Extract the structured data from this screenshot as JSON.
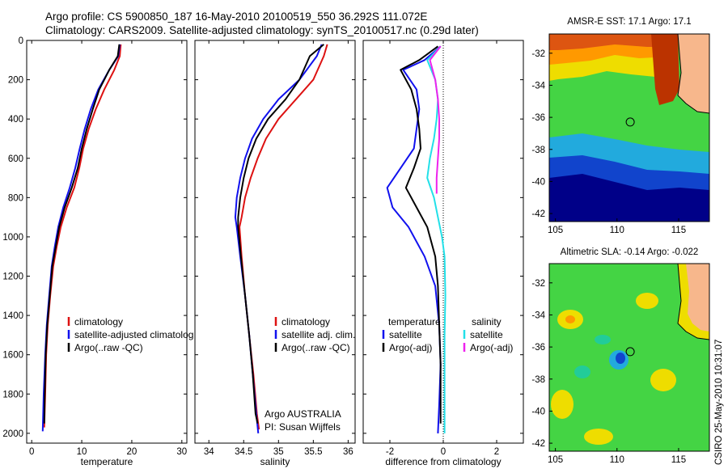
{
  "header": {
    "line1": "Argo profile: CS 5900850_187 16-May-2010 20100519_550 36.292S 111.072E",
    "line2": "Climatology: CARS2009. Satellite-adjusted climatology: synTS_20100517.nc (0.29d later)"
  },
  "footer": {
    "stamp": "CSIRO 25-May-2010 10:31:07"
  },
  "colors": {
    "climatology": "#dd1111",
    "satellite": "#1111ee",
    "argo": "#000000",
    "satellite_diff": "#22e0e8",
    "argo_adj_diff": "#ee22ee",
    "zero_line": "#000000"
  },
  "chart_data": [
    {
      "type": "line",
      "xlabel": "temperature",
      "ylabel": "",
      "xlim": [
        -1,
        31
      ],
      "ylim": [
        2050,
        0
      ],
      "xticks": [
        0,
        10,
        20,
        30
      ],
      "yticks": [
        0,
        200,
        400,
        600,
        800,
        1000,
        1200,
        1400,
        1600,
        1800,
        2000
      ],
      "legend": [
        "climatology",
        "satellite-adjusted climatolog",
        "Argo(..raw -QC)"
      ],
      "series": [
        {
          "name": "climatology",
          "color_key": "climatology",
          "x": [
            17.8,
            17.6,
            16.5,
            14.5,
            12.8,
            11.4,
            10.3,
            9.5,
            8.5,
            7.0,
            5.8,
            5.0,
            4.3,
            3.7,
            3.2,
            2.9,
            2.7,
            2.5
          ],
          "y": [
            20,
            80,
            150,
            250,
            350,
            450,
            550,
            650,
            750,
            850,
            950,
            1050,
            1150,
            1300,
            1450,
            1600,
            1800,
            1970
          ]
        },
        {
          "name": "satellite-adjusted climatolog",
          "color_key": "satellite",
          "x": [
            17.6,
            17.3,
            15.5,
            13.3,
            11.8,
            10.6,
            9.6,
            8.7,
            7.6,
            6.3,
            5.3,
            4.6,
            4.0,
            3.5,
            3.0,
            2.7,
            2.4,
            2.2
          ],
          "y": [
            20,
            80,
            150,
            250,
            350,
            450,
            550,
            650,
            750,
            850,
            950,
            1050,
            1150,
            1300,
            1450,
            1600,
            1800,
            1990
          ]
        },
        {
          "name": "Argo(..raw -QC)",
          "color_key": "argo",
          "x": [
            17.5,
            17.2,
            15.5,
            13.5,
            12.2,
            11.0,
            10.0,
            9.2,
            8.0,
            6.6,
            5.5,
            4.8,
            4.1,
            3.6,
            3.1,
            2.8,
            2.6,
            2.5
          ],
          "y": [
            20,
            80,
            150,
            250,
            350,
            450,
            550,
            650,
            750,
            850,
            950,
            1050,
            1150,
            1300,
            1450,
            1600,
            1800,
            1950
          ]
        }
      ]
    },
    {
      "type": "line",
      "xlabel": "salinity",
      "ylabel": "",
      "xlim": [
        33.8,
        36.1
      ],
      "ylim": [
        2050,
        0
      ],
      "xticks": [
        34,
        34.5,
        35,
        35.5,
        36
      ],
      "xticklabels": [
        "34",
        "34.5",
        "35",
        "35.5",
        "36"
      ],
      "legend": [
        "climatology",
        "satellite adj. clim.",
        "Argo(..raw -QC)"
      ],
      "annotations": [
        "Argo AUSTRALIA",
        "PI: Susan Wijffels"
      ],
      "series": [
        {
          "name": "climatology",
          "color_key": "climatology",
          "x": [
            35.7,
            35.65,
            35.5,
            35.25,
            35.0,
            34.82,
            34.7,
            34.6,
            34.52,
            34.47,
            34.44,
            34.47,
            34.52,
            34.58,
            34.64,
            34.69,
            34.72
          ],
          "y": [
            20,
            80,
            200,
            300,
            400,
            500,
            600,
            700,
            800,
            900,
            950,
            1100,
            1300,
            1500,
            1700,
            1900,
            1980
          ]
        },
        {
          "name": "satellite adj. clim.",
          "color_key": "satellite",
          "x": [
            35.62,
            35.55,
            35.3,
            35.0,
            34.78,
            34.62,
            34.52,
            34.45,
            34.4,
            34.38,
            34.4,
            34.45,
            34.52,
            34.58,
            34.63,
            34.68,
            34.71
          ],
          "y": [
            20,
            80,
            200,
            300,
            400,
            500,
            600,
            700,
            800,
            900,
            950,
            1100,
            1300,
            1500,
            1700,
            1900,
            2000
          ]
        },
        {
          "name": "Argo(..raw -QC)",
          "color_key": "argo",
          "x": [
            35.65,
            35.45,
            35.3,
            35.1,
            34.85,
            34.68,
            34.57,
            34.5,
            34.45,
            34.42,
            34.42,
            34.46,
            34.52,
            34.58,
            34.63,
            34.67,
            34.7
          ],
          "y": [
            20,
            80,
            200,
            300,
            400,
            500,
            600,
            700,
            800,
            900,
            950,
            1100,
            1300,
            1500,
            1700,
            1900,
            1950
          ]
        }
      ]
    },
    {
      "type": "line",
      "xlabel": "difference from climatology",
      "ylabel": "",
      "xlim": [
        -3,
        3
      ],
      "ylim": [
        2050,
        0
      ],
      "xticks": [
        -2,
        0,
        2
      ],
      "xticklabels": [
        "-2",
        "0",
        "2"
      ],
      "legend_left_title": "temperature",
      "legend_left": [
        "satellite",
        "Argo(-adj)"
      ],
      "legend_right_title": "salinity",
      "legend_right": [
        "satellite",
        "Argo(-adj)"
      ],
      "series": [
        {
          "name": "temperature satellite",
          "color_key": "satellite",
          "x": [
            -0.1,
            -0.7,
            -1.5,
            -1.0,
            -0.9,
            -1.0,
            -1.1,
            -1.6,
            -2.1,
            -1.9,
            -1.3,
            -0.7,
            -0.3,
            -0.15,
            -0.1,
            -0.15,
            -0.2
          ],
          "y": [
            30,
            100,
            150,
            250,
            350,
            450,
            550,
            650,
            750,
            850,
            950,
            1100,
            1250,
            1450,
            1650,
            1850,
            2000
          ]
        },
        {
          "name": "temperature Argo(-adj)",
          "color_key": "argo",
          "x": [
            -0.2,
            -0.9,
            -1.6,
            -1.2,
            -1.0,
            -0.9,
            -0.85,
            -1.1,
            -1.4,
            -1.0,
            -0.6,
            -0.3,
            -0.2,
            -0.15,
            -0.1,
            -0.1,
            -0.1
          ],
          "y": [
            30,
            100,
            150,
            250,
            350,
            450,
            550,
            650,
            750,
            850,
            950,
            1100,
            1250,
            1450,
            1650,
            1850,
            1950
          ]
        },
        {
          "name": "salinity satellite",
          "color_key": "satellite_diff",
          "x": [
            -0.1,
            -0.6,
            -0.3,
            -0.2,
            -0.25,
            -0.35,
            -0.5,
            -0.6,
            -0.35,
            -0.2,
            -0.05,
            0.05,
            0.08,
            0.05,
            0.05,
            0.05,
            0.05
          ],
          "y": [
            30,
            100,
            200,
            300,
            400,
            500,
            600,
            700,
            800,
            900,
            1000,
            1100,
            1300,
            1500,
            1700,
            1900,
            2000
          ]
        },
        {
          "name": "salinity Argo(-adj)",
          "color_key": "argo_adj_diff",
          "x": [
            -0.1,
            -0.5,
            -0.3,
            -0.2,
            -0.15,
            -0.15,
            -0.2,
            -0.25,
            -0.25
          ],
          "y": [
            30,
            100,
            200,
            300,
            400,
            500,
            600,
            700,
            780
          ]
        }
      ]
    }
  ],
  "maps": [
    {
      "title": "AMSR-E SST: 17.1 Argo: 17.1",
      "xticks": [
        105,
        110,
        115
      ],
      "xticklabels": [
        "105",
        "110",
        "115"
      ],
      "yticks": [
        -32,
        -34,
        -36,
        -38,
        -40,
        -42
      ],
      "yticklabels": [
        "-32",
        "-34",
        "-36",
        "-38",
        "-40",
        "-42"
      ],
      "xlim": [
        104.5,
        117.5
      ],
      "ylim": [
        -42.5,
        -30.8
      ],
      "marker": {
        "lon": 111.072,
        "lat": -36.292
      }
    },
    {
      "title": "Altimetric SLA: -0.14 Argo: -0.022",
      "xticks": [
        105,
        110,
        115
      ],
      "xticklabels": [
        "105",
        "110",
        "115"
      ],
      "yticks": [
        -32,
        -34,
        -36,
        -38,
        -40,
        -42
      ],
      "yticklabels": [
        "-32",
        "-34",
        "-36",
        "-38",
        "-40",
        "-42"
      ],
      "xlim": [
        104.5,
        117.5
      ],
      "ylim": [
        -42.5,
        -30.8
      ],
      "marker": {
        "lon": 111.072,
        "lat": -36.292
      }
    }
  ]
}
